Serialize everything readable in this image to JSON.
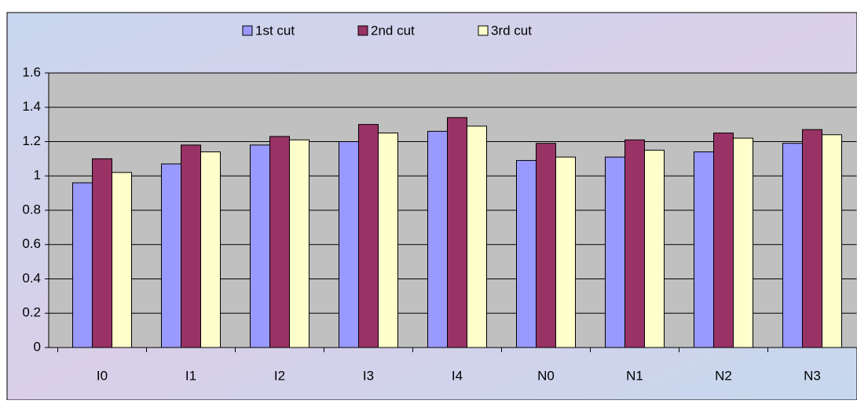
{
  "chart_data": {
    "type": "bar",
    "categories": [
      "I0",
      "I1",
      "I2",
      "I3",
      "I4",
      "N0",
      "N1",
      "N2",
      "N3"
    ],
    "series": [
      {
        "name": "1st cut",
        "color": "#9999ff",
        "values": [
          0.96,
          1.07,
          1.18,
          1.2,
          1.26,
          1.09,
          1.11,
          1.14,
          1.19
        ]
      },
      {
        "name": "2nd cut",
        "color": "#993366",
        "values": [
          1.1,
          1.18,
          1.23,
          1.3,
          1.34,
          1.19,
          1.21,
          1.25,
          1.27
        ]
      },
      {
        "name": "3rd cut",
        "color": "#ffffcc",
        "values": [
          1.02,
          1.14,
          1.21,
          1.25,
          1.29,
          1.11,
          1.15,
          1.22,
          1.24
        ]
      }
    ],
    "ylim": [
      0,
      1.6
    ],
    "yticks": [
      0,
      0.2,
      0.4,
      0.6,
      0.8,
      1,
      1.2,
      1.4,
      1.6
    ],
    "grid": true,
    "legend": "top"
  }
}
